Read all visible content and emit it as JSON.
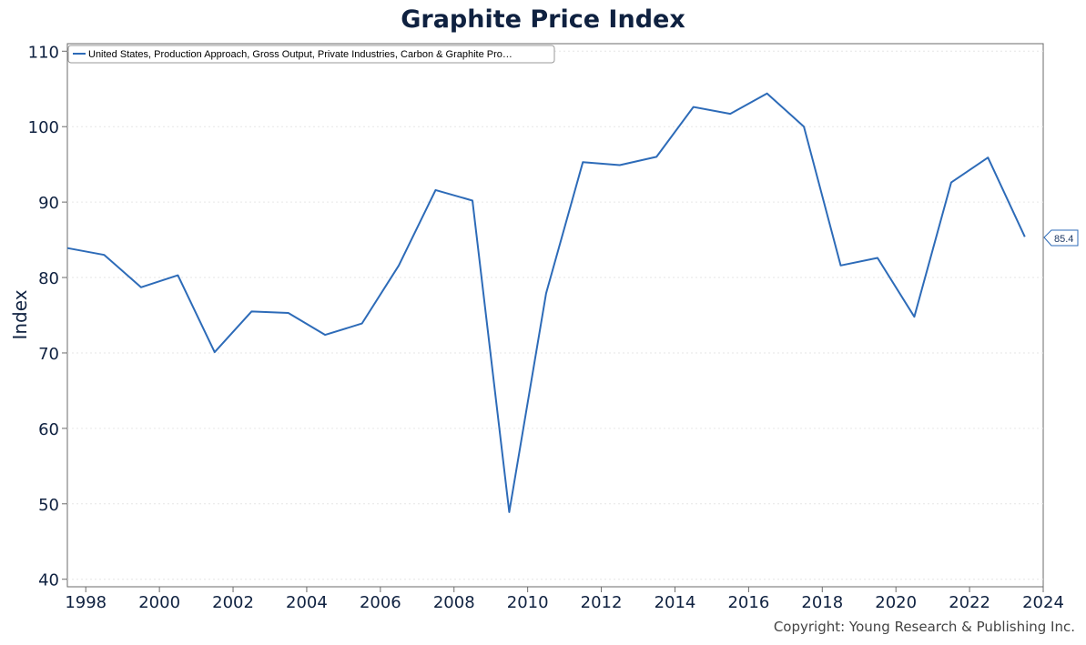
{
  "title": "Graphite Price Index",
  "copyright": "Copyright: Young Research & Publishing Inc.",
  "colors": {
    "series": "#2d6bb8",
    "axis": "#0f2140",
    "grid": "#e6e6e6"
  },
  "chart_data": {
    "type": "line",
    "title": "Graphite Price Index",
    "xlabel": "",
    "ylabel": "Index",
    "xlim": [
      1997.5,
      2024
    ],
    "ylim": [
      39,
      111
    ],
    "y_ticks": [
      40,
      50,
      60,
      70,
      80,
      90,
      100,
      110
    ],
    "x_ticks": [
      1998,
      2000,
      2002,
      2004,
      2006,
      2008,
      2010,
      2012,
      2014,
      2016,
      2018,
      2020,
      2022,
      2024
    ],
    "grid": "horizontal dotted",
    "legend": "top-left",
    "last_value_label": "85.4",
    "series": [
      {
        "name": "United States, Production Approach, Gross Output, Private Industries, Carbon & Graphite Pro…",
        "x": [
          1997.5,
          1998.5,
          1999.5,
          2000.5,
          2001.5,
          2002.5,
          2003.5,
          2004.5,
          2005.5,
          2006.5,
          2007.5,
          2008.5,
          2009.5,
          2010.5,
          2011.5,
          2012.5,
          2013.5,
          2014.5,
          2015.5,
          2016.5,
          2017.5,
          2018.5,
          2019.5,
          2020.5,
          2021.5,
          2022.5,
          2023.5
        ],
        "y": [
          83.9,
          83.0,
          78.7,
          80.3,
          70.1,
          75.5,
          75.3,
          72.4,
          73.9,
          81.6,
          91.6,
          90.2,
          48.9,
          77.9,
          95.3,
          94.9,
          96.0,
          102.6,
          101.7,
          104.4,
          100.0,
          81.6,
          82.6,
          74.8,
          92.6,
          95.9,
          85.4
        ]
      }
    ]
  }
}
